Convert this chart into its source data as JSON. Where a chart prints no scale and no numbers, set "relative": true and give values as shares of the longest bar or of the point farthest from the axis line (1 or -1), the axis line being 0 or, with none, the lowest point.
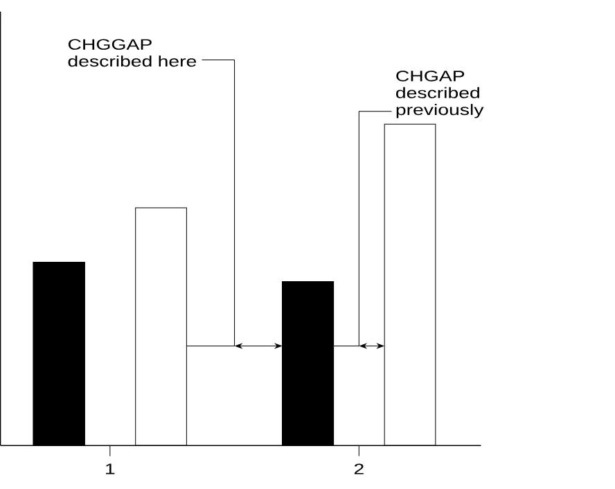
{
  "chart_data": {
    "type": "bar",
    "relative": true,
    "categories": [
      "1",
      "2"
    ],
    "series": [
      {
        "color": "#000000",
        "values": [
          0.57,
          0.51
        ]
      },
      {
        "color": "#ffffff",
        "values": [
          0.74,
          1
        ]
      }
    ],
    "annotations": [
      "CHGGAP described here",
      "CHGAP described previously"
    ]
  }
}
